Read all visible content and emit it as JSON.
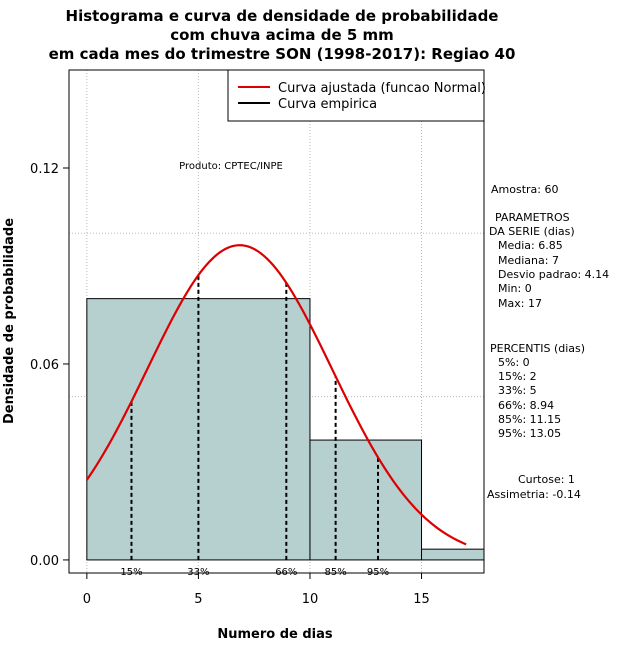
{
  "title": {
    "line1": "Histograma e curva de densidade de probabilidade",
    "line2": "com chuva acima de 5 mm",
    "line3": "em cada mes do trimestre SON (1998-2017): Regiao 40"
  },
  "producer": "Produto: CPTEC/INPE",
  "legend": {
    "fitted": "Curva ajustada (funcao Normal)",
    "empirical": "Curva empirica"
  },
  "colors": {
    "bar_fill": "#b6cfcf",
    "fitted_curve": "#dd0000",
    "grid": "#bbbbbb"
  },
  "stats": {
    "sample": "Amostra: 60",
    "params_header1": "PARAMETROS",
    "params_header2": "DA SERIE (dias)",
    "mean": "Media: 6.85",
    "median": "Mediana: 7",
    "sd": "Desvio padrao: 4.14",
    "min": "Min: 0",
    "max": "Max: 17",
    "percentiles_header": "PERCENTIS (dias)",
    "p5": "5%: 0",
    "p15": "15%: 2",
    "p33": "33%: 5",
    "p66": "66%: 8.94",
    "p85": "85%: 11.15",
    "p95": "95%: 13.05",
    "kurtosis": "Curtose: 1",
    "skewness": "Assimetria: -0.14"
  },
  "chart_data": {
    "type": "bar",
    "title": "Histograma e curva de densidade de probabilidade com chuva acima de 5 mm em cada mes do trimestre SON (1998-2017): Regiao 40",
    "xlabel": "Numero de dias",
    "ylabel": "Densidade de probabilidade",
    "xlim": [
      -0.8,
      17.8
    ],
    "ylim": [
      -0.004,
      0.15
    ],
    "x_ticks": [
      0,
      5,
      10,
      15
    ],
    "y_ticks": [
      0.0,
      0.06,
      0.12
    ],
    "y_tick_labels": [
      "0.00",
      "0.06",
      "0.12"
    ],
    "grid_x": [
      0,
      5,
      10,
      15
    ],
    "grid_y": [
      0.05,
      0.1
    ],
    "bins": [
      {
        "start": 0,
        "end": 10,
        "density": 0.08
      },
      {
        "start": 10,
        "end": 15,
        "density": 0.0367
      },
      {
        "start": 15,
        "end": 18,
        "density": 0.0033
      }
    ],
    "normal_fit": {
      "mean": 6.85,
      "sd": 4.14,
      "x_from": 0,
      "x_to": 17
    },
    "percentile_markers": [
      {
        "label": "15%",
        "x": 2
      },
      {
        "label": "33%",
        "x": 5
      },
      {
        "label": "66%",
        "x": 8.94
      },
      {
        "label": "85%",
        "x": 11.15
      },
      {
        "label": "95%",
        "x": 13.05
      }
    ],
    "legend_position": "top-right"
  }
}
